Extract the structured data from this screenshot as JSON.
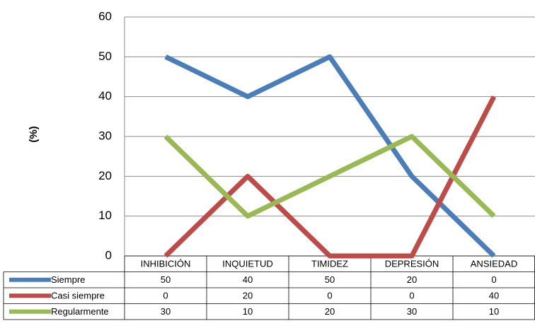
{
  "chart_data": {
    "type": "line",
    "title": "",
    "xlabel": "",
    "ylabel": "(%)",
    "ylim": [
      0,
      60
    ],
    "yticks": [
      "0",
      "10",
      "20",
      "30",
      "40",
      "50",
      "60"
    ],
    "grid": true,
    "legend": "data-table",
    "categories": [
      "INHIBICIÓN",
      "INQUIETUD",
      "TIMIDEZ",
      "DEPRESIÓN",
      "ANSIEDAD"
    ],
    "series": [
      {
        "name": "Siempre",
        "color": "#4a7ebb",
        "values": [
          50,
          40,
          50,
          20,
          0
        ]
      },
      {
        "name": "Casi siempre",
        "color": "#be4b48",
        "values": [
          0,
          20,
          0,
          0,
          40
        ]
      },
      {
        "name": "Regularmente",
        "color": "#98b954",
        "values": [
          30,
          10,
          20,
          30,
          10
        ]
      }
    ]
  }
}
